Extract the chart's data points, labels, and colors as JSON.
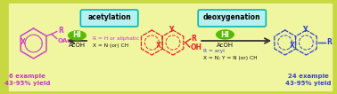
{
  "bg_outer": "#c8d840",
  "bg_inner": "#f0f5a0",
  "acetylation_label": "acetylation",
  "deoxygenation_label": "deoxygenation",
  "hi_label": "HI",
  "acoh_label": "AcOH",
  "r_h_aliphatic": "R = H or aliphatic",
  "x_n_ch": "X = N (or) CH",
  "r_aryl": "R = aryl",
  "x_n_y_n_ch": "X = N; Y = N (or) CH",
  "six_example": "6 example",
  "six_yield": "43-95% yield",
  "twentyfour_example": "24 example",
  "twentyfour_yield": "43-95% yield",
  "cyan_box_fc": "#b8f0f0",
  "cyan_box_ec": "#00bbbb",
  "green_oval": "#55bb00",
  "purple": "#cc44cc",
  "red": "#ee2222",
  "blue": "#3344cc",
  "magenta": "#cc33cc",
  "black": "#111111",
  "arrow_color": "#333333"
}
